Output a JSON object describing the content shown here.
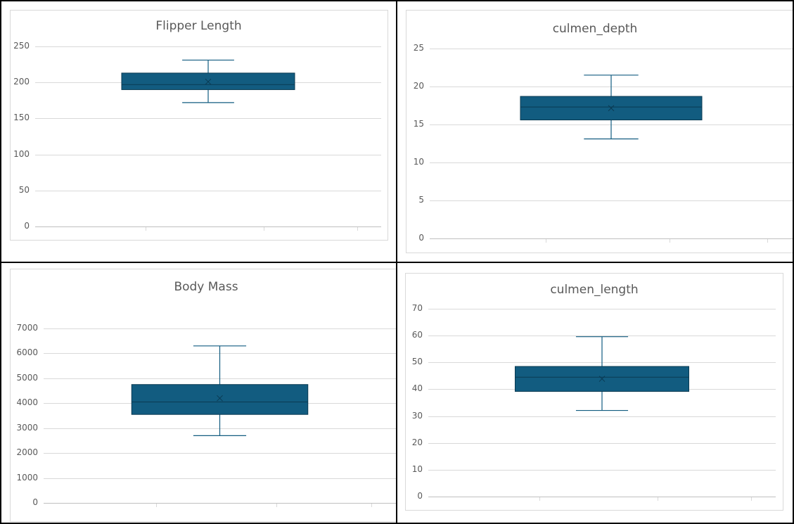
{
  "style": {
    "box_fill": "#125c80",
    "box_stroke": "#0a3a52",
    "grid": "#d9d9d9",
    "text": "#595959"
  },
  "chart_data": [
    {
      "type": "boxplot",
      "title": "Flipper Length",
      "ylim": [
        0,
        250
      ],
      "yticks": [
        "250",
        "200",
        "150",
        "100",
        "50",
        "0"
      ],
      "series": [
        {
          "min": 172,
          "q1": 190,
          "median": 197,
          "mean": 201,
          "q3": 213,
          "max": 231
        }
      ]
    },
    {
      "type": "boxplot",
      "title": "culmen_depth",
      "ylim": [
        0,
        25
      ],
      "yticks": [
        "25",
        "20",
        "15",
        "10",
        "5",
        "0"
      ],
      "series": [
        {
          "min": 13.1,
          "q1": 15.6,
          "median": 17.3,
          "mean": 17.15,
          "q3": 18.7,
          "max": 21.5
        }
      ]
    },
    {
      "type": "boxplot",
      "title": "Body Mass",
      "ylim": [
        0,
        7000
      ],
      "yticks": [
        "7000",
        "6000",
        "5000",
        "4000",
        "3000",
        "2000",
        "1000",
        "0"
      ],
      "series": [
        {
          "min": 2700,
          "q1": 3550,
          "median": 4050,
          "mean": 4200,
          "q3": 4750,
          "max": 6300
        }
      ]
    },
    {
      "type": "boxplot",
      "title": "culmen_length",
      "ylim": [
        0,
        70
      ],
      "yticks": [
        "70",
        "60",
        "50",
        "40",
        "30",
        "20",
        "10",
        "0"
      ],
      "series": [
        {
          "min": 32.1,
          "q1": 39.2,
          "median": 44.5,
          "mean": 43.9,
          "q3": 48.5,
          "max": 59.6
        }
      ]
    }
  ]
}
